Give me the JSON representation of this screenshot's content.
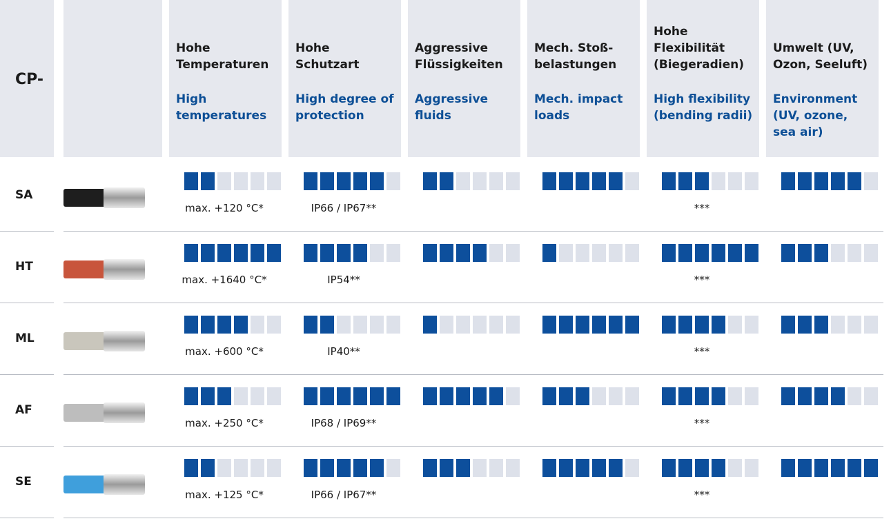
{
  "header": {
    "code": "CP-",
    "columns": [
      {
        "de": "Hohe Temperaturen",
        "en": "High temperatures"
      },
      {
        "de": "Hohe Schutzart",
        "en": "High degree of protection"
      },
      {
        "de": "Aggressive Flüssigkeiten",
        "en": "Aggressive fluids"
      },
      {
        "de": "Mech. Stoß-belastungen",
        "en": "Mech. impact loads"
      },
      {
        "de": "Hohe Flexibilität (Biegeradien)",
        "en": "High flexibility (bending radii)"
      },
      {
        "de": "Umwelt (UV, Ozon, Seeluft)",
        "en": "Environment (UV, ozone, sea air)"
      }
    ]
  },
  "rating_max": 6,
  "rows": [
    {
      "code": "SA",
      "color": "#1e1e1e",
      "ratings": [
        2,
        5,
        2,
        5,
        3,
        5
      ],
      "notes": {
        "temperature": "max. +120 °C*",
        "protection": "IP66 / IP67**",
        "flexibility": "***"
      }
    },
    {
      "code": "HT",
      "color": "#c8553c",
      "ratings": [
        6,
        4,
        4,
        1,
        6,
        3
      ],
      "notes": {
        "temperature": "max. +1640 °C*",
        "protection": "IP54**",
        "flexibility": "***"
      }
    },
    {
      "code": "ML",
      "color": "#c9c6bc",
      "ratings": [
        4,
        2,
        1,
        6,
        4,
        3
      ],
      "notes": {
        "temperature": "max. +600 °C*",
        "protection": "IP40**",
        "flexibility": "***"
      }
    },
    {
      "code": "AF",
      "color": "#bdbdbd",
      "ratings": [
        3,
        6,
        5,
        3,
        4,
        4
      ],
      "notes": {
        "temperature": "max. +250 °C*",
        "protection": "IP68 / IP69**",
        "flexibility": "***"
      }
    },
    {
      "code": "SE",
      "color": "#3f9fdc",
      "ratings": [
        2,
        5,
        3,
        5,
        4,
        6
      ],
      "notes": {
        "temperature": "max. +125 °C*",
        "protection": "IP66 / IP67**",
        "flexibility": "***"
      }
    }
  ]
}
